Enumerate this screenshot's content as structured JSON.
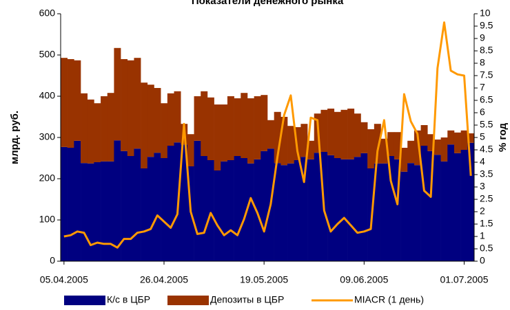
{
  "chart_data": {
    "type": "bar",
    "stacked": true,
    "title": "Показатели денежного рынка",
    "ylabel": "млрд. руб.",
    "y2label": "% год",
    "categories": [
      "05.04.2005",
      null,
      null,
      null,
      null,
      null,
      null,
      null,
      null,
      null,
      null,
      null,
      null,
      null,
      null,
      "26.04.2005",
      null,
      null,
      null,
      null,
      null,
      null,
      null,
      null,
      null,
      null,
      null,
      null,
      null,
      null,
      "19.05.2005",
      null,
      null,
      null,
      null,
      null,
      null,
      null,
      null,
      null,
      null,
      null,
      null,
      null,
      null,
      "09.06.2005",
      null,
      null,
      null,
      null,
      null,
      null,
      null,
      null,
      null,
      null,
      null,
      null,
      null,
      null,
      "01.07.2005",
      null
    ],
    "series": [
      {
        "name": "К/с в ЦБР",
        "color": "#000080",
        "type": "bar",
        "values": [
          277,
          275,
          292,
          238,
          237,
          240,
          242,
          242,
          293,
          267,
          255,
          273,
          225,
          253,
          263,
          250,
          280,
          288,
          283,
          230,
          292,
          255,
          245,
          220,
          242,
          245,
          255,
          250,
          237,
          247,
          267,
          273,
          238,
          233,
          237,
          245,
          253,
          247,
          263,
          265,
          257,
          250,
          247,
          247,
          253,
          262,
          225,
          237,
          237,
          255,
          247,
          217,
          238,
          233,
          280,
          267,
          258,
          242,
          283,
          262,
          270,
          287
        ]
      },
      {
        "name": "Депозиты в ЦБР",
        "color": "#993300",
        "type": "bar",
        "values": [
          216,
          215,
          195,
          169,
          155,
          143,
          158,
          166,
          224,
          223,
          232,
          220,
          208,
          175,
          157,
          133,
          127,
          124,
          50,
          78,
          108,
          157,
          152,
          160,
          138,
          155,
          140,
          158,
          158,
          153,
          136,
          69,
          124,
          117,
          91,
          80,
          80,
          45,
          95,
          102,
          113,
          112,
          120,
          123,
          105,
          75,
          95,
          96,
          60,
          58,
          66,
          58,
          54,
          84,
          50,
          41,
          37,
          58,
          34,
          50,
          47,
          23
        ]
      },
      {
        "name": "MIACR (1 день)",
        "color": "#ff9900",
        "type": "line",
        "axis": "y2",
        "values": [
          1.0,
          1.05,
          1.2,
          1.15,
          0.65,
          0.75,
          0.7,
          0.7,
          0.55,
          0.9,
          0.9,
          1.15,
          1.2,
          1.3,
          1.85,
          1.6,
          1.35,
          1.9,
          5.55,
          2.0,
          1.1,
          1.15,
          1.95,
          1.45,
          1.05,
          1.25,
          1.05,
          1.7,
          2.55,
          1.95,
          1.2,
          2.3,
          4.2,
          5.9,
          6.7,
          4.45,
          3.2,
          5.8,
          5.7,
          2.05,
          1.2,
          1.5,
          1.75,
          1.45,
          1.15,
          1.2,
          1.3,
          4.45,
          5.7,
          3.25,
          2.3,
          6.75,
          5.65,
          5.15,
          2.85,
          2.6,
          7.8,
          9.65,
          7.7,
          7.55,
          7.5,
          3.45
        ]
      }
    ],
    "ylim": [
      0,
      600
    ],
    "yticks": [
      0,
      100,
      200,
      300,
      400,
      500,
      600
    ],
    "y2lim": [
      0,
      10
    ],
    "y2ticks": [
      0,
      0.5,
      1,
      1.5,
      2,
      2.5,
      3,
      3.5,
      4,
      4.5,
      5,
      5.5,
      6,
      6.5,
      7,
      7.5,
      8,
      8.5,
      9,
      9.5,
      10
    ],
    "legend": "bottom"
  }
}
